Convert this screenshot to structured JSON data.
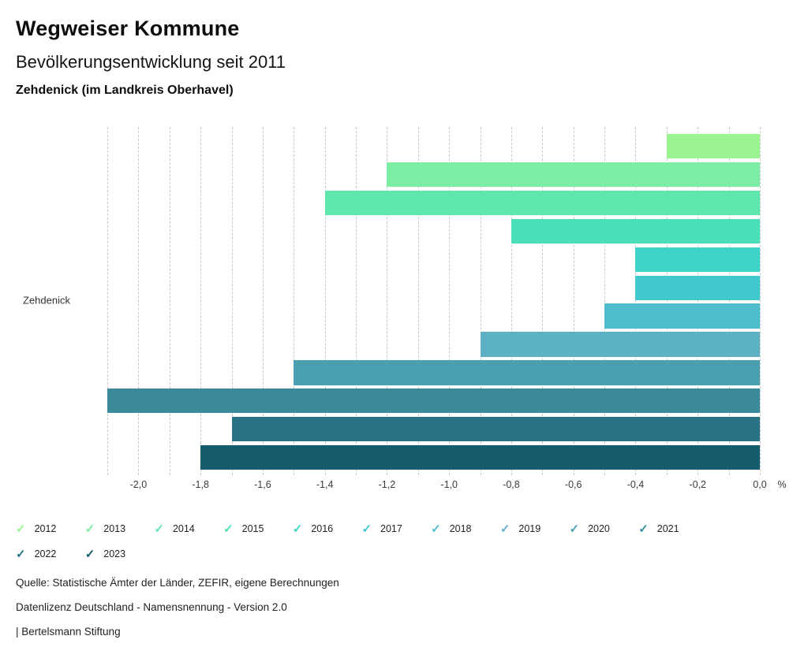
{
  "header": {
    "title": "Wegweiser Kommune",
    "subtitle": "Bevölkerungsentwicklung seit 2011",
    "region": "Zehdenick (im Landkreis Oberhavel)"
  },
  "chart_data": {
    "type": "bar",
    "orientation": "horizontal",
    "title": "Bevölkerungsentwicklung seit 2011",
    "group_label": "Zehdenick",
    "unit": "%",
    "series": [
      {
        "name": "2012",
        "value": -0.3,
        "color": "#9af48f"
      },
      {
        "name": "2013",
        "value": -1.2,
        "color": "#7deda3"
      },
      {
        "name": "2014",
        "value": -1.4,
        "color": "#5fe7ab"
      },
      {
        "name": "2015",
        "value": -0.8,
        "color": "#49dfb8"
      },
      {
        "name": "2016",
        "value": -0.4,
        "color": "#3cd4c6"
      },
      {
        "name": "2017",
        "value": -0.4,
        "color": "#3fc9cd"
      },
      {
        "name": "2018",
        "value": -0.5,
        "color": "#4dbccb"
      },
      {
        "name": "2019",
        "value": -0.9,
        "color": "#5cb1c5"
      },
      {
        "name": "2020",
        "value": -1.5,
        "color": "#4aa0b1"
      },
      {
        "name": "2021",
        "value": -2.1,
        "color": "#3a8a9b"
      },
      {
        "name": "2022",
        "value": -1.7,
        "color": "#297384"
      },
      {
        "name": "2023",
        "value": -1.8,
        "color": "#155c6d"
      }
    ],
    "xlim": [
      -2.1,
      0
    ],
    "grid": true,
    "grid_step": 0.1,
    "tick_labels": [
      "-2,0",
      "-1,8",
      "-1,6",
      "-1,4",
      "-1,2",
      "-1,0",
      "-0,8",
      "-0,6",
      "-0,4",
      "-0,2",
      "0,0"
    ],
    "legend_position": "bottom",
    "legend_check_glyph": "✓"
  },
  "footer": {
    "source": "Quelle: Statistische Ämter der Länder, ZEFIR, eigene Berechnungen",
    "license": "Datenlizenz Deutschland - Namensnennung - Version 2.0",
    "attribution": "| Bertelsmann Stiftung"
  }
}
